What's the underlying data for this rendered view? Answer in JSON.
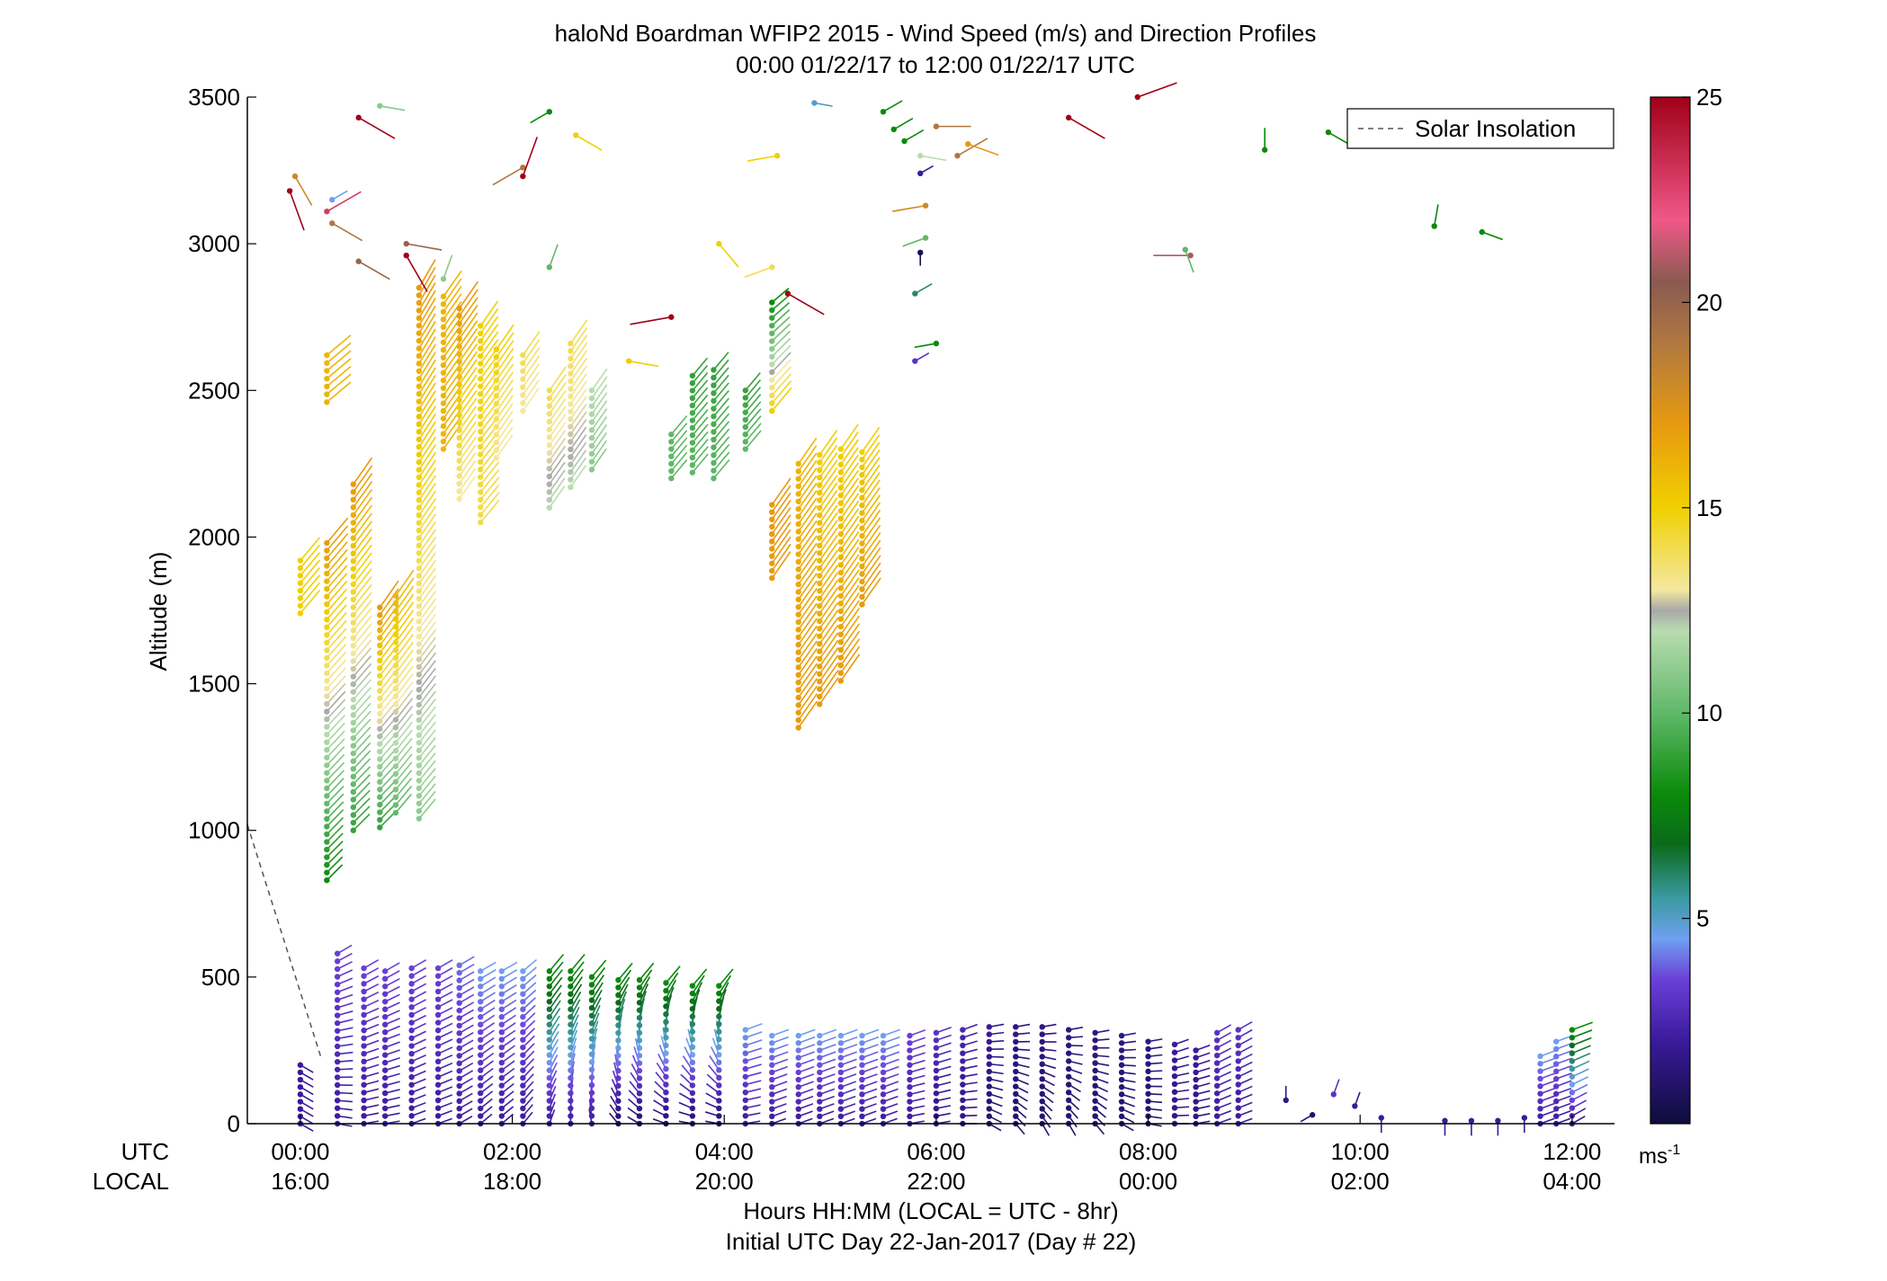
{
  "chart_data": {
    "type": "wind-barb-profile",
    "title": "haloNd Boardman WFIP2 2015 - Wind Speed (m/s) and Direction Profiles",
    "subtitle": "00:00 01/22/17 to 12:00 01/22/17  UTC",
    "ylabel": "Altitude (m)",
    "ylim": [
      0,
      3500
    ],
    "yticks": [
      "0",
      "500",
      "1000",
      "1500",
      "2000",
      "2500",
      "3000",
      "3500"
    ],
    "xlim_hours_utc": [
      -0.5,
      12.4
    ],
    "xticks_utc": [
      "00:00",
      "02:00",
      "04:00",
      "06:00",
      "08:00",
      "10:00",
      "12:00"
    ],
    "xticks_local": [
      "16:00",
      "18:00",
      "20:00",
      "22:00",
      "00:00",
      "02:00",
      "04:00"
    ],
    "xtick_positions_hours": [
      0,
      2,
      4,
      6,
      8,
      10,
      12
    ],
    "row_label_utc": "UTC",
    "row_label_local": "LOCAL",
    "xlabel_line1": "Hours HH:MM  (LOCAL = UTC - 8hr)",
    "xlabel_line2": "Initial UTC Day 22-Jan-2017 (Day # 22)",
    "legend": {
      "entries": [
        "Solar Insolation"
      ],
      "placement": "top-right"
    },
    "solar_insolation": {
      "hours": [
        -0.5,
        0.2
      ],
      "altitude_m": [
        1020,
        220
      ]
    },
    "colorbar": {
      "range": [
        0,
        25
      ],
      "ticks": [
        "5",
        "10",
        "15",
        "20",
        "25"
      ],
      "tick_values": [
        5,
        10,
        15,
        20,
        25
      ],
      "unit_label": "ms",
      "unit_exponent": "-1",
      "stops": [
        {
          "v": 0,
          "c": "#0d0d3a"
        },
        {
          "v": 2,
          "c": "#3a1a9a"
        },
        {
          "v": 3.5,
          "c": "#6a3fd8"
        },
        {
          "v": 4.5,
          "c": "#6fa0f0"
        },
        {
          "v": 5.5,
          "c": "#3a9aa0"
        },
        {
          "v": 6.8,
          "c": "#0a6a1a"
        },
        {
          "v": 8,
          "c": "#0a8a0a"
        },
        {
          "v": 10,
          "c": "#60b868"
        },
        {
          "v": 12,
          "c": "#b8dcb0"
        },
        {
          "v": 12.5,
          "c": "#a8a8a8"
        },
        {
          "v": 13,
          "c": "#f4e8a0"
        },
        {
          "v": 15,
          "c": "#f0d000"
        },
        {
          "v": 17,
          "c": "#e89a10"
        },
        {
          "v": 19,
          "c": "#b07840"
        },
        {
          "v": 20.5,
          "c": "#8a5a50"
        },
        {
          "v": 22,
          "c": "#f05888"
        },
        {
          "v": 25,
          "c": "#a00018"
        }
      ]
    },
    "profiles": [
      {
        "t": 0.0,
        "h0": 1740,
        "h1": 1920,
        "sp": [
          15,
          15
        ],
        "dir": [
          220,
          220
        ]
      },
      {
        "t": 0.25,
        "h0": 830,
        "h1": 1980,
        "sp": [
          8,
          17
        ],
        "dir": [
          225,
          220
        ]
      },
      {
        "t": 0.25,
        "h0": 2460,
        "h1": 2620,
        "sp": [
          16,
          16
        ],
        "dir": [
          230,
          230
        ]
      },
      {
        "t": 0.5,
        "h0": 1000,
        "h1": 2180,
        "sp": [
          9,
          17
        ],
        "dir": [
          225,
          215
        ]
      },
      {
        "t": 0.75,
        "h0": 1010,
        "h1": 1760,
        "sp": [
          9,
          17
        ],
        "dir": [
          225,
          215
        ]
      },
      {
        "t": 0.9,
        "h0": 1060,
        "h1": 1800,
        "sp": [
          10,
          16
        ],
        "dir": [
          220,
          215
        ]
      },
      {
        "t": 1.12,
        "h0": 1040,
        "h1": 2850,
        "sp": [
          11,
          17
        ],
        "dir": [
          220,
          210
        ]
      },
      {
        "t": 1.35,
        "h0": 2300,
        "h1": 2820,
        "sp": [
          16,
          16
        ],
        "dir": [
          215,
          215
        ]
      },
      {
        "t": 1.5,
        "h0": 2130,
        "h1": 2780,
        "sp": [
          13,
          17
        ],
        "dir": [
          215,
          215
        ]
      },
      {
        "t": 1.7,
        "h0": 2050,
        "h1": 2720,
        "sp": [
          14,
          15
        ],
        "dir": [
          220,
          215
        ]
      },
      {
        "t": 1.85,
        "h0": 2270,
        "h1": 2640,
        "sp": [
          13,
          15
        ],
        "dir": [
          215,
          215
        ]
      },
      {
        "t": 2.1,
        "h0": 2430,
        "h1": 2620,
        "sp": [
          13,
          14
        ],
        "dir": [
          215,
          215
        ]
      },
      {
        "t": 2.35,
        "h0": 2100,
        "h1": 2500,
        "sp": [
          12,
          14
        ],
        "dir": [
          215,
          215
        ]
      },
      {
        "t": 2.55,
        "h0": 2170,
        "h1": 2660,
        "sp": [
          12,
          14
        ],
        "dir": [
          215,
          215
        ]
      },
      {
        "t": 2.75,
        "h0": 2230,
        "h1": 2500,
        "sp": [
          11,
          12
        ],
        "dir": [
          215,
          215
        ]
      },
      {
        "t": 3.5,
        "h0": 2200,
        "h1": 2350,
        "sp": [
          10,
          10
        ],
        "dir": [
          220,
          220
        ]
      },
      {
        "t": 3.7,
        "h0": 2220,
        "h1": 2550,
        "sp": [
          10,
          9
        ],
        "dir": [
          220,
          220
        ]
      },
      {
        "t": 3.9,
        "h0": 2200,
        "h1": 2570,
        "sp": [
          10,
          9
        ],
        "dir": [
          220,
          220
        ]
      },
      {
        "t": 4.2,
        "h0": 2300,
        "h1": 2500,
        "sp": [
          10,
          9
        ],
        "dir": [
          220,
          220
        ]
      },
      {
        "t": 4.45,
        "h0": 1860,
        "h1": 2110,
        "sp": [
          17,
          17
        ],
        "dir": [
          215,
          215
        ]
      },
      {
        "t": 4.45,
        "h0": 2430,
        "h1": 2800,
        "sp": [
          15,
          8
        ],
        "dir": [
          220,
          230
        ]
      },
      {
        "t": 4.7,
        "h0": 1350,
        "h1": 2250,
        "sp": [
          17,
          16
        ],
        "dir": [
          215,
          215
        ]
      },
      {
        "t": 4.9,
        "h0": 1430,
        "h1": 2280,
        "sp": [
          17,
          15
        ],
        "dir": [
          215,
          215
        ]
      },
      {
        "t": 5.1,
        "h0": 1510,
        "h1": 2300,
        "sp": [
          17,
          15
        ],
        "dir": [
          215,
          215
        ]
      },
      {
        "t": 5.3,
        "h0": 1770,
        "h1": 2290,
        "sp": [
          17,
          15
        ],
        "dir": [
          215,
          215
        ]
      },
      {
        "t": 0.0,
        "h0": 0,
        "h1": 200,
        "sp": [
          2,
          2
        ],
        "dir": [
          300,
          300
        ]
      },
      {
        "t": 0.35,
        "h0": 0,
        "h1": 580,
        "sp": [
          2,
          3.5
        ],
        "dir": [
          280,
          240
        ]
      },
      {
        "t": 0.6,
        "h0": 0,
        "h1": 530,
        "sp": [
          2,
          3.5
        ],
        "dir": [
          260,
          240
        ]
      },
      {
        "t": 0.8,
        "h0": 0,
        "h1": 520,
        "sp": [
          2,
          3.5
        ],
        "dir": [
          260,
          240
        ]
      },
      {
        "t": 1.05,
        "h0": 0,
        "h1": 530,
        "sp": [
          2,
          3.5
        ],
        "dir": [
          250,
          240
        ]
      },
      {
        "t": 1.3,
        "h0": 0,
        "h1": 530,
        "sp": [
          2,
          3.5
        ],
        "dir": [
          250,
          240
        ]
      },
      {
        "t": 1.5,
        "h0": 0,
        "h1": 540,
        "sp": [
          2,
          4
        ],
        "dir": [
          240,
          240
        ]
      },
      {
        "t": 1.7,
        "h0": 0,
        "h1": 520,
        "sp": [
          2,
          4.5
        ],
        "dir": [
          230,
          240
        ]
      },
      {
        "t": 1.9,
        "h0": 0,
        "h1": 520,
        "sp": [
          2,
          4.5
        ],
        "dir": [
          230,
          240
        ]
      },
      {
        "t": 2.1,
        "h0": 0,
        "h1": 520,
        "sp": [
          2,
          4.5
        ],
        "dir": [
          220,
          230
        ]
      },
      {
        "t": 2.35,
        "h0": 0,
        "h1": 520,
        "sp": [
          2,
          8
        ],
        "dir": [
          200,
          220
        ]
      },
      {
        "t": 2.55,
        "h0": 0,
        "h1": 520,
        "sp": [
          2,
          8
        ],
        "dir": [
          180,
          220
        ]
      },
      {
        "t": 2.75,
        "h0": 0,
        "h1": 500,
        "sp": [
          2,
          8
        ],
        "dir": [
          170,
          220
        ]
      },
      {
        "t": 3.0,
        "h0": 0,
        "h1": 490,
        "sp": [
          1,
          8
        ],
        "dir": [
          140,
          220
        ]
      },
      {
        "t": 3.2,
        "h0": 0,
        "h1": 490,
        "sp": [
          1,
          8
        ],
        "dir": [
          120,
          220
        ]
      },
      {
        "t": 3.45,
        "h0": 0,
        "h1": 480,
        "sp": [
          1,
          8
        ],
        "dir": [
          110,
          220
        ]
      },
      {
        "t": 3.7,
        "h0": 0,
        "h1": 470,
        "sp": [
          1,
          8
        ],
        "dir": [
          100,
          220
        ]
      },
      {
        "t": 3.95,
        "h0": 0,
        "h1": 470,
        "sp": [
          1,
          8
        ],
        "dir": [
          100,
          220
        ]
      },
      {
        "t": 4.2,
        "h0": 0,
        "h1": 320,
        "sp": [
          2,
          4.5
        ],
        "dir": [
          260,
          250
        ]
      },
      {
        "t": 4.45,
        "h0": 0,
        "h1": 300,
        "sp": [
          2,
          4.5
        ],
        "dir": [
          250,
          250
        ]
      },
      {
        "t": 4.7,
        "h0": 0,
        "h1": 300,
        "sp": [
          2,
          4.5
        ],
        "dir": [
          250,
          250
        ]
      },
      {
        "t": 4.9,
        "h0": 0,
        "h1": 300,
        "sp": [
          2,
          4.5
        ],
        "dir": [
          250,
          250
        ]
      },
      {
        "t": 5.1,
        "h0": 0,
        "h1": 300,
        "sp": [
          2,
          4.5
        ],
        "dir": [
          250,
          250
        ]
      },
      {
        "t": 5.3,
        "h0": 0,
        "h1": 300,
        "sp": [
          2,
          4.5
        ],
        "dir": [
          250,
          250
        ]
      },
      {
        "t": 5.5,
        "h0": 0,
        "h1": 300,
        "sp": [
          2,
          4.5
        ],
        "dir": [
          250,
          250
        ]
      },
      {
        "t": 5.75,
        "h0": 0,
        "h1": 300,
        "sp": [
          2,
          3.5
        ],
        "dir": [
          260,
          250
        ]
      },
      {
        "t": 6.0,
        "h0": 0,
        "h1": 310,
        "sp": [
          1.5,
          3
        ],
        "dir": [
          260,
          250
        ]
      },
      {
        "t": 6.25,
        "h0": 0,
        "h1": 320,
        "sp": [
          1.5,
          2.5
        ],
        "dir": [
          270,
          250
        ]
      },
      {
        "t": 6.5,
        "h0": 0,
        "h1": 330,
        "sp": [
          1,
          2
        ],
        "dir": [
          300,
          260
        ]
      },
      {
        "t": 6.75,
        "h0": 0,
        "h1": 330,
        "sp": [
          1,
          1.5
        ],
        "dir": [
          320,
          260
        ]
      },
      {
        "t": 7.0,
        "h0": 0,
        "h1": 330,
        "sp": [
          1,
          1.5
        ],
        "dir": [
          330,
          260
        ]
      },
      {
        "t": 7.25,
        "h0": 0,
        "h1": 320,
        "sp": [
          1,
          1.5
        ],
        "dir": [
          330,
          260
        ]
      },
      {
        "t": 7.5,
        "h0": 0,
        "h1": 310,
        "sp": [
          1,
          1.5
        ],
        "dir": [
          320,
          260
        ]
      },
      {
        "t": 7.75,
        "h0": 0,
        "h1": 300,
        "sp": [
          1,
          1.5
        ],
        "dir": [
          300,
          260
        ]
      },
      {
        "t": 8.0,
        "h0": 0,
        "h1": 280,
        "sp": [
          1,
          1.5
        ],
        "dir": [
          280,
          260
        ]
      },
      {
        "t": 8.25,
        "h0": 0,
        "h1": 270,
        "sp": [
          1.5,
          2
        ],
        "dir": [
          270,
          250
        ]
      },
      {
        "t": 8.45,
        "h0": 0,
        "h1": 250,
        "sp": [
          1.5,
          2
        ],
        "dir": [
          260,
          250
        ]
      },
      {
        "t": 8.65,
        "h0": 0,
        "h1": 310,
        "sp": [
          2,
          3
        ],
        "dir": [
          250,
          240
        ]
      },
      {
        "t": 8.85,
        "h0": 0,
        "h1": 320,
        "sp": [
          2,
          3
        ],
        "dir": [
          250,
          240
        ]
      },
      {
        "t": 11.7,
        "h0": 0,
        "h1": 230,
        "sp": [
          2,
          4.5
        ],
        "dir": [
          250,
          250
        ]
      },
      {
        "t": 11.85,
        "h0": 0,
        "h1": 280,
        "sp": [
          2,
          4.5
        ],
        "dir": [
          250,
          250
        ]
      },
      {
        "t": 12.0,
        "h0": 0,
        "h1": 320,
        "sp": [
          2,
          8
        ],
        "dir": [
          240,
          250
        ]
      }
    ],
    "isolated_barbs": [
      {
        "t": -0.05,
        "h": 3230,
        "sp": 18,
        "dir": 330
      },
      {
        "t": -0.1,
        "h": 3180,
        "sp": 25,
        "dir": 340
      },
      {
        "t": 0.3,
        "h": 3150,
        "sp": 4.5,
        "dir": 240
      },
      {
        "t": 0.25,
        "h": 3110,
        "sp": 23,
        "dir": 240
      },
      {
        "t": 0.3,
        "h": 3070,
        "sp": 19,
        "dir": 300
      },
      {
        "t": 0.55,
        "h": 3430,
        "sp": 25,
        "dir": 300
      },
      {
        "t": 0.75,
        "h": 3470,
        "sp": 11,
        "dir": 280
      },
      {
        "t": 0.55,
        "h": 2940,
        "sp": 20,
        "dir": 300
      },
      {
        "t": 1.0,
        "h": 3000,
        "sp": 20,
        "dir": 280
      },
      {
        "t": 1.0,
        "h": 2960,
        "sp": 25,
        "dir": 330
      },
      {
        "t": 1.35,
        "h": 2880,
        "sp": 11,
        "dir": 200
      },
      {
        "t": 2.1,
        "h": 3260,
        "sp": 19,
        "dir": 60
      },
      {
        "t": 2.1,
        "h": 3230,
        "sp": 25,
        "dir": 200
      },
      {
        "t": 2.35,
        "h": 2920,
        "sp": 10,
        "dir": 200
      },
      {
        "t": 2.35,
        "h": 3450,
        "sp": 8,
        "dir": 60
      },
      {
        "t": 2.6,
        "h": 3370,
        "sp": 15,
        "dir": 300
      },
      {
        "t": 3.1,
        "h": 2600,
        "sp": 15,
        "dir": 280
      },
      {
        "t": 3.5,
        "h": 2750,
        "sp": 25,
        "dir": 80
      },
      {
        "t": 3.95,
        "h": 3000,
        "sp": 15,
        "dir": 320
      },
      {
        "t": 4.5,
        "h": 3300,
        "sp": 15,
        "dir": 80
      },
      {
        "t": 4.45,
        "h": 2920,
        "sp": 14,
        "dir": 70
      },
      {
        "t": 4.6,
        "h": 2830,
        "sp": 25,
        "dir": 300
      },
      {
        "t": 4.85,
        "h": 3480,
        "sp": 5,
        "dir": 280
      },
      {
        "t": 5.5,
        "h": 3450,
        "sp": 8,
        "dir": 240
      },
      {
        "t": 5.6,
        "h": 3390,
        "sp": 8,
        "dir": 240
      },
      {
        "t": 5.7,
        "h": 3350,
        "sp": 8,
        "dir": 240
      },
      {
        "t": 5.85,
        "h": 3300,
        "sp": 12,
        "dir": 280
      },
      {
        "t": 5.85,
        "h": 3240,
        "sp": 2,
        "dir": 240
      },
      {
        "t": 6.0,
        "h": 3400,
        "sp": 19,
        "dir": 270
      },
      {
        "t": 6.2,
        "h": 3300,
        "sp": 19,
        "dir": 240
      },
      {
        "t": 6.3,
        "h": 3340,
        "sp": 17,
        "dir": 290
      },
      {
        "t": 5.9,
        "h": 3130,
        "sp": 18,
        "dir": 80
      },
      {
        "t": 5.9,
        "h": 3020,
        "sp": 10,
        "dir": 70
      },
      {
        "t": 5.85,
        "h": 2970,
        "sp": 0.5,
        "dir": 0
      },
      {
        "t": 5.8,
        "h": 2830,
        "sp": 6,
        "dir": 240
      },
      {
        "t": 6.0,
        "h": 2660,
        "sp": 8,
        "dir": 80
      },
      {
        "t": 5.8,
        "h": 2600,
        "sp": 3,
        "dir": 240
      },
      {
        "t": 7.25,
        "h": 3430,
        "sp": 25,
        "dir": 300
      },
      {
        "t": 7.9,
        "h": 3500,
        "sp": 25,
        "dir": 250
      },
      {
        "t": 8.4,
        "h": 2960,
        "sp": 21,
        "dir": 90
      },
      {
        "t": 8.35,
        "h": 2980,
        "sp": 10,
        "dir": 340
      },
      {
        "t": 9.1,
        "h": 3320,
        "sp": 8,
        "dir": 180
      },
      {
        "t": 9.7,
        "h": 3380,
        "sp": 8,
        "dir": 300
      },
      {
        "t": 10.7,
        "h": 3060,
        "sp": 8,
        "dir": 190
      },
      {
        "t": 11.15,
        "h": 3040,
        "sp": 8,
        "dir": 290
      },
      {
        "t": 9.3,
        "h": 80,
        "sp": 1.5,
        "dir": 180
      },
      {
        "t": 9.55,
        "h": 30,
        "sp": 1,
        "dir": 60
      },
      {
        "t": 9.75,
        "h": 100,
        "sp": 3,
        "dir": 200
      },
      {
        "t": 9.95,
        "h": 60,
        "sp": 2,
        "dir": 200
      },
      {
        "t": 10.2,
        "h": 20,
        "sp": 2,
        "dir": 0
      },
      {
        "t": 10.8,
        "h": 10,
        "sp": 2,
        "dir": 0
      },
      {
        "t": 11.05,
        "h": 10,
        "sp": 2,
        "dir": 0
      },
      {
        "t": 11.3,
        "h": 10,
        "sp": 2,
        "dir": 0
      },
      {
        "t": 11.55,
        "h": 20,
        "sp": 2,
        "dir": 0
      }
    ]
  }
}
